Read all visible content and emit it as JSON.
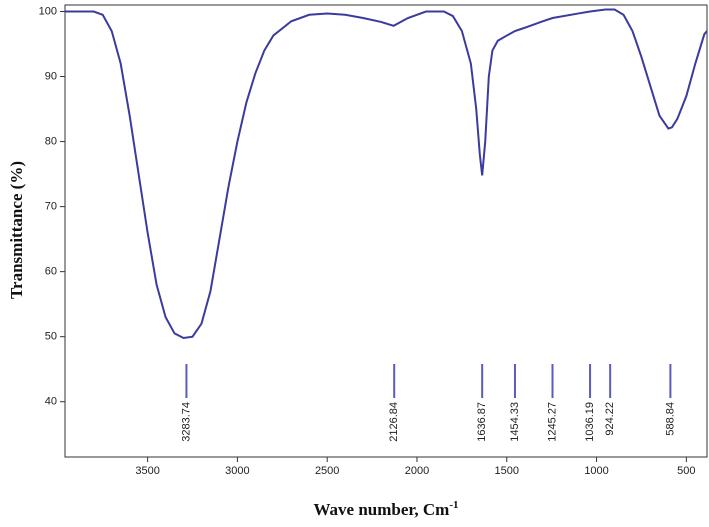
{
  "chart_data": {
    "type": "line",
    "ylabel": "Transmittance (%)",
    "xlabel": "Wave number, Cm",
    "xlabel_sup": "-1",
    "color": "#3b3b9e",
    "peak_color": "#5a5ac0",
    "x": [
      3960,
      3800,
      3750,
      3700,
      3650,
      3600,
      3550,
      3500,
      3450,
      3400,
      3350,
      3300,
      3250,
      3200,
      3150,
      3100,
      3050,
      3000,
      2950,
      2900,
      2850,
      2800,
      2700,
      2600,
      2500,
      2400,
      2300,
      2200,
      2130,
      2050,
      1950,
      1850,
      1800,
      1750,
      1700,
      1670,
      1650,
      1637,
      1620,
      1600,
      1580,
      1550,
      1500,
      1454,
      1400,
      1300,
      1245,
      1100,
      1036,
      950,
      900,
      850,
      800,
      750,
      700,
      650,
      600,
      580,
      550,
      500,
      450,
      400,
      385
    ],
    "y": [
      100,
      100,
      99.5,
      97,
      92,
      84,
      75,
      66,
      58,
      53,
      50.5,
      49.8,
      50,
      52,
      57,
      65,
      73,
      80,
      86,
      90.5,
      94,
      96.3,
      98.5,
      99.5,
      99.7,
      99.5,
      99,
      98.4,
      97.8,
      99,
      100,
      100,
      99.3,
      97,
      92,
      85,
      78,
      74.8,
      80,
      90,
      94,
      95.5,
      96.3,
      97,
      97.5,
      98.5,
      99,
      99.7,
      100,
      100.3,
      100.3,
      99.5,
      97,
      93,
      88.5,
      84,
      82,
      82.2,
      83.5,
      87,
      92,
      96.5,
      97
    ],
    "peaks": [
      3283.74,
      2126.84,
      1636.87,
      1454.33,
      1245.27,
      1036.19,
      924.22,
      588.84
    ],
    "xlim": [
      3960,
      385
    ],
    "ylim": [
      31.5,
      101
    ],
    "xticks": [
      3500,
      3000,
      2500,
      2000,
      1500,
      1000,
      500
    ],
    "yticks": [
      40,
      50,
      60,
      70,
      80,
      90,
      100
    ]
  }
}
